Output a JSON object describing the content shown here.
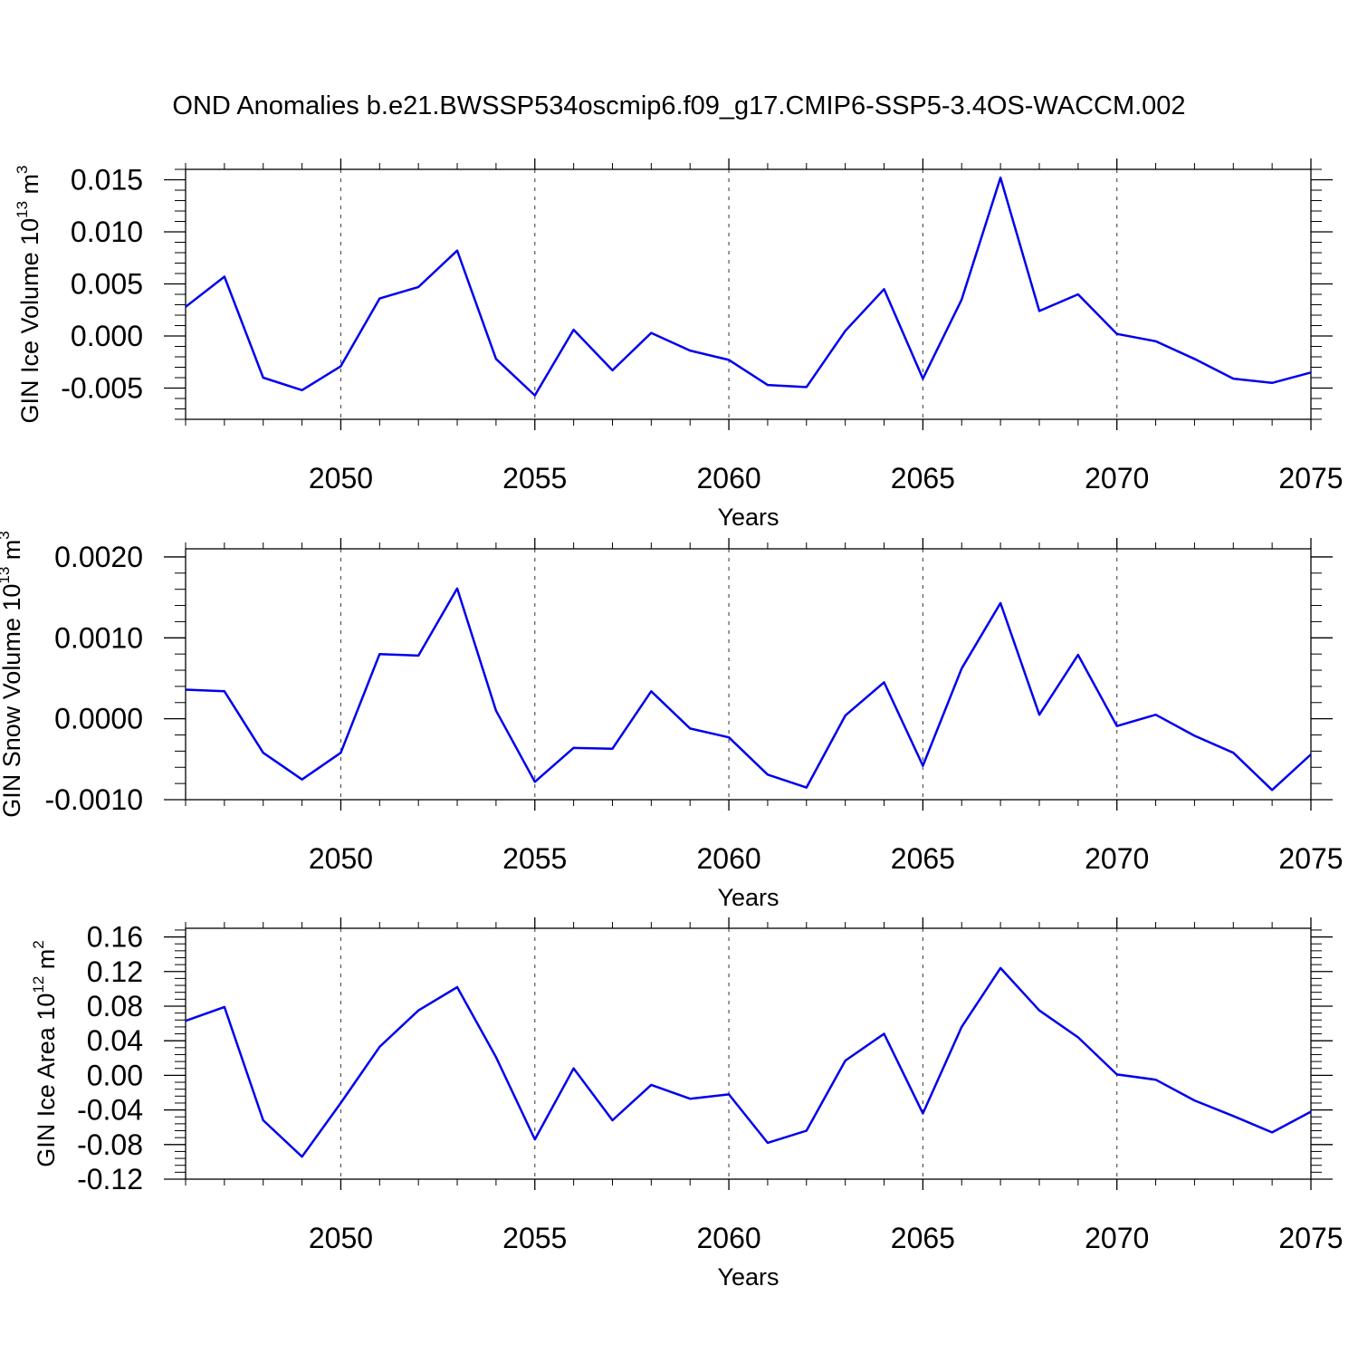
{
  "title": "OND Anomalies b.e21.BWSSP534oscmip6.f09_g17.CMIP6-SSP5-3.4OS-WACCM.002",
  "colors": {
    "line": "#0000ee",
    "axes": "#000000",
    "grid": "#555555"
  },
  "chart_data": [
    {
      "type": "line",
      "xlabel": "Years",
      "ylabel_main": "GIN Ice Volume 10",
      "ylabel_exp": "13",
      "ylabel_unit": " m",
      "ylabel_unit_exp": "3",
      "xlim": [
        2046,
        2075
      ],
      "ylim": [
        -0.008,
        0.016
      ],
      "xticks": [
        2050,
        2055,
        2060,
        2065,
        2070,
        2075
      ],
      "yticks": [
        -0.005,
        0.0,
        0.005,
        0.01,
        0.015
      ],
      "ytick_labels": [
        "-0.005",
        "0.000",
        "0.005",
        "0.010",
        "0.015"
      ],
      "grid": "x dashed",
      "series": [
        {
          "x": [
            2046,
            2047,
            2048,
            2049,
            2050,
            2051,
            2052,
            2053,
            2054,
            2055,
            2056,
            2057,
            2058,
            2059,
            2060,
            2061,
            2062,
            2063,
            2064,
            2065,
            2066,
            2067,
            2068,
            2069,
            2070,
            2071,
            2072,
            2073,
            2074,
            2075
          ],
          "y": [
            0.0028,
            0.0057,
            -0.004,
            -0.0052,
            -0.0029,
            0.0036,
            0.0047,
            0.0082,
            -0.0022,
            -0.0057,
            0.0006,
            -0.0033,
            0.0003,
            -0.0014,
            -0.0023,
            -0.0047,
            -0.0049,
            0.0005,
            0.0045,
            -0.0041,
            0.0035,
            0.0152,
            0.0024,
            0.004,
            0.0002,
            -0.0005,
            -0.0022,
            -0.0041,
            -0.0045,
            -0.0035
          ]
        }
      ]
    },
    {
      "type": "line",
      "xlabel": "Years",
      "ylabel_main": "GIN Snow Volume 10",
      "ylabel_exp": "13",
      "ylabel_unit": " m",
      "ylabel_unit_exp": "3",
      "xlim": [
        2046,
        2075
      ],
      "ylim": [
        -0.001,
        0.0021
      ],
      "xticks": [
        2050,
        2055,
        2060,
        2065,
        2070,
        2075
      ],
      "yticks": [
        -0.001,
        0.0,
        0.001,
        0.002
      ],
      "ytick_labels": [
        "-0.0010",
        "0.0000",
        "0.0010",
        "0.0020"
      ],
      "grid": "x dashed",
      "series": [
        {
          "x": [
            2046,
            2047,
            2048,
            2049,
            2050,
            2051,
            2052,
            2053,
            2054,
            2055,
            2056,
            2057,
            2058,
            2059,
            2060,
            2061,
            2062,
            2063,
            2064,
            2065,
            2066,
            2067,
            2068,
            2069,
            2070,
            2071,
            2072,
            2073,
            2074,
            2075
          ],
          "y": [
            0.00036,
            0.00034,
            -0.00042,
            -0.00075,
            -0.00042,
            0.0008,
            0.00078,
            0.00161,
            0.0001,
            -0.00078,
            -0.00036,
            -0.00037,
            0.00034,
            -0.00012,
            -0.00023,
            -0.00069,
            -0.00085,
            4e-05,
            0.00045,
            -0.00058,
            0.00062,
            0.00143,
            5e-05,
            0.00079,
            -9e-05,
            5e-05,
            -0.00021,
            -0.00042,
            -0.00088,
            -0.00044
          ]
        }
      ]
    },
    {
      "type": "line",
      "xlabel": "Years",
      "ylabel_main": "GIN Ice Area 10",
      "ylabel_exp": "12",
      "ylabel_unit": " m",
      "ylabel_unit_exp": "2",
      "xlim": [
        2046,
        2075
      ],
      "ylim": [
        -0.12,
        0.17
      ],
      "xticks": [
        2050,
        2055,
        2060,
        2065,
        2070,
        2075
      ],
      "yticks": [
        -0.12,
        -0.08,
        -0.04,
        0.0,
        0.04,
        0.08,
        0.12,
        0.16
      ],
      "ytick_labels": [
        "-0.12",
        "-0.08",
        "-0.04",
        "0.00",
        "0.04",
        "0.08",
        "0.12",
        "0.16"
      ],
      "grid": "x dashed",
      "series": [
        {
          "x": [
            2046,
            2047,
            2048,
            2049,
            2050,
            2051,
            2052,
            2053,
            2054,
            2055,
            2056,
            2057,
            2058,
            2059,
            2060,
            2061,
            2062,
            2063,
            2064,
            2065,
            2066,
            2067,
            2068,
            2069,
            2070,
            2071,
            2072,
            2073,
            2074,
            2075
          ],
          "y": [
            0.063,
            0.079,
            -0.052,
            -0.094,
            -0.032,
            0.033,
            0.075,
            0.102,
            0.021,
            -0.074,
            0.008,
            -0.052,
            -0.011,
            -0.027,
            -0.022,
            -0.078,
            -0.064,
            0.017,
            0.048,
            -0.044,
            0.056,
            0.124,
            0.075,
            0.044,
            0.001,
            -0.005,
            -0.029,
            -0.047,
            -0.066,
            -0.042
          ]
        }
      ]
    }
  ]
}
